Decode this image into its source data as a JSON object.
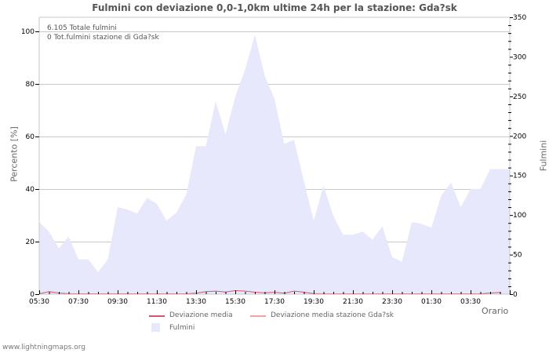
{
  "title": "Fulmini con deviazione 0,0-1,0km ultime 24h per la stazione: Gda?sk",
  "info": {
    "total_line": "6.105 Totale fulmini",
    "station_line": "0 Tot.fulmini stazione di Gda?sk"
  },
  "axes": {
    "left_label": "Percento   [%]",
    "right_label": "Fulmini",
    "x_label": "Orario",
    "left_ticks": [
      "0",
      "20",
      "40",
      "60",
      "80",
      "100"
    ],
    "right_ticks": [
      "0",
      "50",
      "100",
      "150",
      "200",
      "250",
      "300",
      "350"
    ],
    "x_ticks": [
      "05:30",
      "07:30",
      "09:30",
      "11:30",
      "13:30",
      "15:30",
      "17:30",
      "19:30",
      "21:30",
      "23:30",
      "01:30",
      "03:30"
    ]
  },
  "legend": {
    "item1": "Deviazione media",
    "item2": "Deviazione media stazione Gda?sk",
    "item3": "Fulmini"
  },
  "colors": {
    "area": "#e8e8fc",
    "deviation": "#d9546a",
    "deviation_station": "#f2a0a0",
    "grid": "#c8c8c8"
  },
  "footer": "www.lightningmaps.org",
  "chart_data": {
    "type": "area",
    "title": "Fulmini con deviazione 0,0-1,0km ultime 24h per la stazione: Gda?sk",
    "xlabel": "Orario",
    "ylabel_left": "Percento [%]",
    "ylabel_right": "Fulmini",
    "ylim_left": [
      0,
      100
    ],
    "ylim_right": [
      0,
      350
    ],
    "grid": true,
    "legend_position": "bottom",
    "x_interval_minutes": 30,
    "x_start": "05:30",
    "categories": [
      "05:30",
      "06:00",
      "06:30",
      "07:00",
      "07:30",
      "08:00",
      "08:30",
      "09:00",
      "09:30",
      "10:00",
      "10:30",
      "11:00",
      "11:30",
      "12:00",
      "12:30",
      "13:00",
      "13:30",
      "14:00",
      "14:30",
      "15:00",
      "15:30",
      "16:00",
      "16:30",
      "17:00",
      "17:30",
      "18:00",
      "18:30",
      "19:00",
      "19:30",
      "20:00",
      "20:30",
      "21:00",
      "21:30",
      "22:00",
      "22:30",
      "23:00",
      "23:30",
      "00:00",
      "00:30",
      "01:00",
      "01:30",
      "02:00",
      "02:30",
      "03:00",
      "03:30",
      "04:00",
      "04:30",
      "05:00"
    ],
    "series": [
      {
        "name": "Fulmini",
        "axis": "right",
        "type": "area",
        "values": [
          91,
          79,
          58,
          73,
          44,
          44,
          28,
          44,
          110,
          107,
          102,
          122,
          114,
          93,
          103,
          126,
          187,
          187,
          244,
          202,
          250,
          284,
          328,
          276,
          247,
          190,
          195,
          143,
          93,
          137,
          99,
          75,
          75,
          79,
          69,
          86,
          47,
          41,
          91,
          89,
          84,
          124,
          141,
          110,
          133,
          133,
          158,
          158
        ]
      },
      {
        "name": "Deviazione media",
        "axis": "left",
        "type": "line",
        "values": [
          0,
          0.8,
          0.3,
          0,
          0,
          0,
          0,
          0,
          0,
          0,
          0,
          0,
          0,
          0,
          0,
          0,
          0.2,
          0.8,
          1,
          0.7,
          1.2,
          1,
          0.6,
          0.4,
          0.6,
          0.2,
          1,
          0.6,
          0.1,
          0,
          0,
          0,
          0,
          0,
          0,
          0,
          0,
          0,
          0,
          0,
          0,
          0,
          0,
          0,
          0,
          0,
          0.3,
          0.5
        ]
      },
      {
        "name": "Deviazione media stazione Gda?sk",
        "axis": "left",
        "type": "line",
        "values": []
      }
    ],
    "annotations": [
      "6.105 Totale fulmini",
      "0 Tot.fulmini stazione di Gda?sk"
    ]
  }
}
